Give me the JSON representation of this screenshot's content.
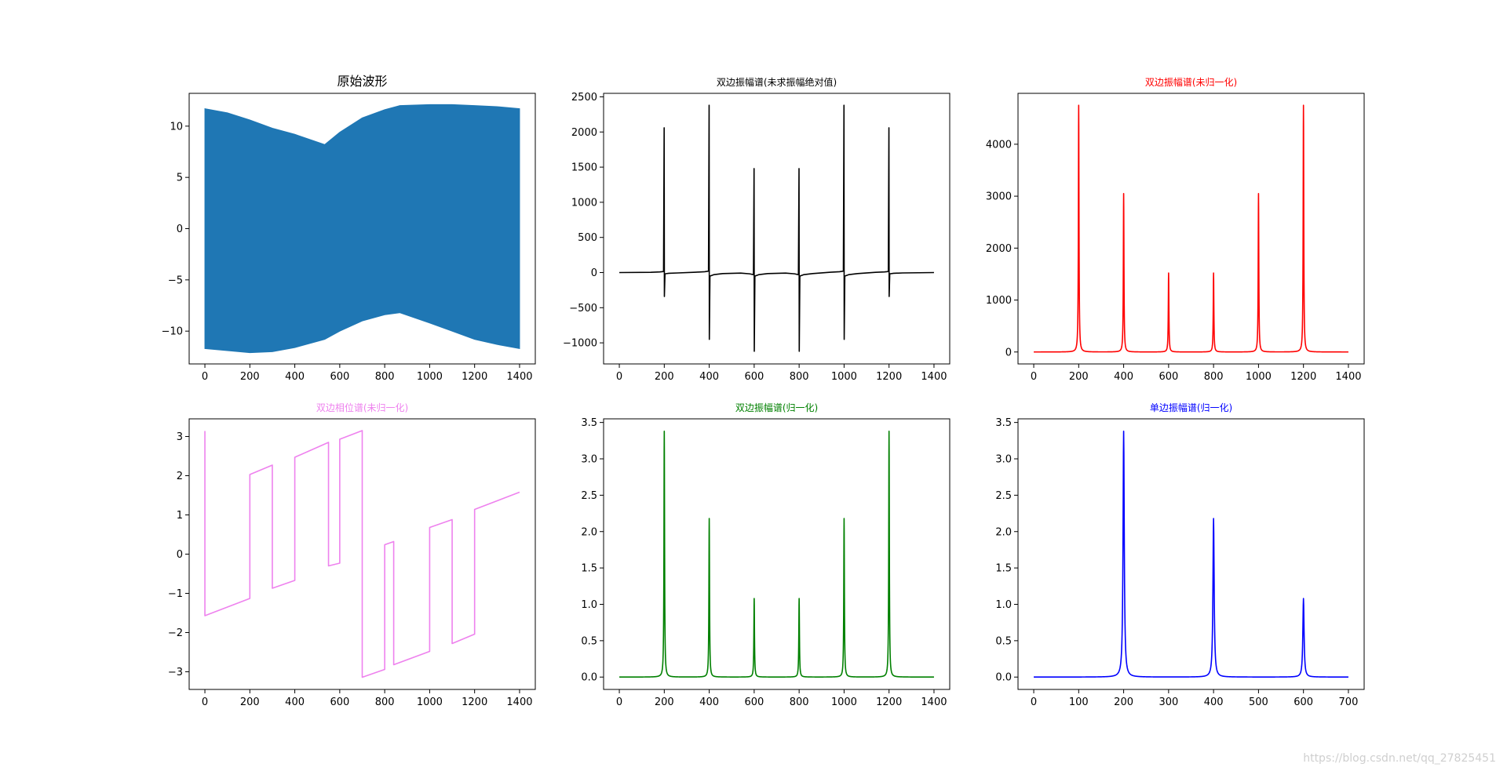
{
  "watermark": "https://blog.csdn.net/qq_27825451",
  "chart_data": [
    {
      "id": "p1",
      "type": "area",
      "title": "原始波形",
      "title_color": "#000000",
      "title_size": "large",
      "color": "#1f77b4",
      "xlim": [
        -70,
        1470
      ],
      "ylim": [
        -13.2,
        13.2
      ],
      "xticks": [
        0,
        200,
        400,
        600,
        800,
        1000,
        1200,
        1400
      ],
      "yticks": [
        -10,
        -5,
        0,
        5,
        10
      ],
      "x": [
        0,
        100,
        200,
        300,
        400,
        533,
        600,
        700,
        800,
        867,
        1000,
        1100,
        1200,
        1300,
        1400
      ],
      "upper": [
        11.7,
        11.3,
        10.6,
        9.8,
        9.2,
        8.2,
        9.4,
        10.8,
        11.6,
        12.0,
        12.1,
        12.1,
        12.0,
        11.9,
        11.7
      ],
      "lower": [
        -11.7,
        -11.9,
        -12.1,
        -12.0,
        -11.6,
        -10.8,
        -10.0,
        -9.0,
        -8.4,
        -8.2,
        -9.2,
        -10.0,
        -10.8,
        -11.3,
        -11.7
      ]
    },
    {
      "id": "p2",
      "type": "line",
      "title": "双边振幅谱(未求振幅绝对值)",
      "title_color": "#000000",
      "color": "#000000",
      "xlim": [
        -70,
        1470
      ],
      "ylim": [
        -1300,
        2550
      ],
      "xticks": [
        0,
        200,
        400,
        600,
        800,
        1000,
        1200,
        1400
      ],
      "yticks": [
        -1000,
        -500,
        0,
        500,
        1000,
        1500,
        2000,
        2500
      ],
      "peaks": [
        {
          "x": 200,
          "hi": 2060,
          "lo": -340,
          "ih": 15,
          "ol": -18
        },
        {
          "x": 400,
          "hi": 2380,
          "lo": -950,
          "ih": 20,
          "ol": -50
        },
        {
          "x": 600,
          "hi": 1480,
          "lo": -1120,
          "ih": -30,
          "ol": -50
        },
        {
          "x": 800,
          "hi": 1480,
          "lo": -1120,
          "ih": -30,
          "ol": -50
        },
        {
          "x": 1000,
          "hi": 2380,
          "lo": -950,
          "ih": 20,
          "ol": -50
        },
        {
          "x": 1200,
          "hi": 2060,
          "lo": -340,
          "ih": 15,
          "ol": -18
        }
      ]
    },
    {
      "id": "p3",
      "type": "line",
      "title": "双边振幅谱(未归一化)",
      "title_color": "#ff0000",
      "color": "#ff0000",
      "xlim": [
        -70,
        1470
      ],
      "ylim": [
        -230,
        4980
      ],
      "xticks": [
        0,
        200,
        400,
        600,
        800,
        1000,
        1200,
        1400
      ],
      "yticks": [
        0,
        1000,
        2000,
        3000,
        4000
      ],
      "peaks": [
        {
          "x": 200,
          "h": 4750
        },
        {
          "x": 400,
          "h": 3050
        },
        {
          "x": 600,
          "h": 1520
        },
        {
          "x": 800,
          "h": 1520
        },
        {
          "x": 1000,
          "h": 3050
        },
        {
          "x": 1200,
          "h": 4750
        }
      ]
    },
    {
      "id": "p4",
      "type": "line",
      "title": "双边相位谱(未归一化)",
      "title_color": "#ee82ee",
      "color": "#ee82ee",
      "xlim": [
        -70,
        1470
      ],
      "ylim": [
        -3.45,
        3.45
      ],
      "xticks": [
        0,
        200,
        400,
        600,
        800,
        1000,
        1200,
        1400
      ],
      "yticks": [
        -3,
        -2,
        -1,
        0,
        1,
        2,
        3
      ],
      "x": [
        0,
        0,
        200,
        200,
        300,
        300,
        400,
        400,
        550,
        550,
        600,
        600,
        700,
        700,
        800,
        800,
        840,
        840,
        1000,
        1000,
        1100,
        1100,
        1200,
        1200,
        1400
      ],
      "y": [
        3.14,
        -1.57,
        -1.13,
        2.03,
        2.27,
        -0.87,
        -0.67,
        2.47,
        2.85,
        -0.3,
        -0.23,
        2.93,
        3.15,
        -3.14,
        -2.94,
        0.24,
        0.32,
        -2.82,
        -2.48,
        0.68,
        0.88,
        -2.28,
        -2.04,
        1.14,
        1.58
      ]
    },
    {
      "id": "p5",
      "type": "line",
      "title": "双边振幅谱(归一化)",
      "title_color": "#008000",
      "color": "#008000",
      "xlim": [
        -70,
        1470
      ],
      "ylim": [
        -0.17,
        3.55
      ],
      "xticks": [
        0,
        200,
        400,
        600,
        800,
        1000,
        1200,
        1400
      ],
      "yticks": [
        0.0,
        0.5,
        1.0,
        1.5,
        2.0,
        2.5,
        3.0,
        3.5
      ],
      "peaks": [
        {
          "x": 200,
          "h": 3.38
        },
        {
          "x": 400,
          "h": 2.18
        },
        {
          "x": 600,
          "h": 1.08
        },
        {
          "x": 800,
          "h": 1.08
        },
        {
          "x": 1000,
          "h": 2.18
        },
        {
          "x": 1200,
          "h": 3.38
        }
      ]
    },
    {
      "id": "p6",
      "type": "line",
      "title": "单边振幅谱(归一化)",
      "title_color": "#0000ff",
      "color": "#0000ff",
      "xlim": [
        -35,
        735
      ],
      "ylim": [
        -0.17,
        3.55
      ],
      "xticks": [
        0,
        100,
        200,
        300,
        400,
        500,
        600,
        700
      ],
      "yticks": [
        0.0,
        0.5,
        1.0,
        1.5,
        2.0,
        2.5,
        3.0,
        3.5
      ],
      "peaks": [
        {
          "x": 200,
          "h": 3.38
        },
        {
          "x": 400,
          "h": 2.18
        },
        {
          "x": 600,
          "h": 1.08
        }
      ],
      "xend": 700
    }
  ]
}
